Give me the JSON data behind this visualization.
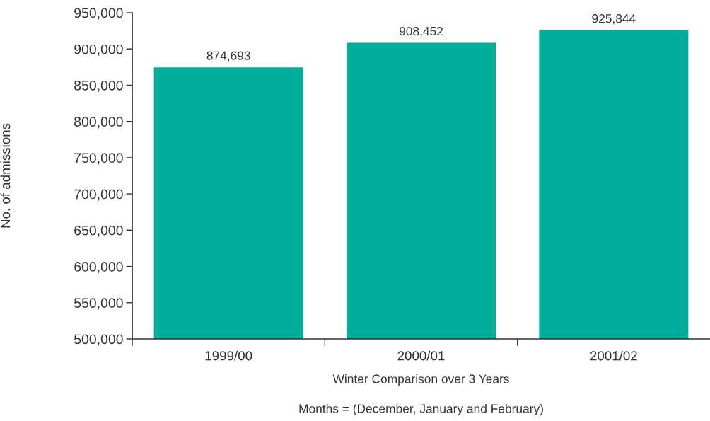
{
  "chart_data": {
    "type": "bar",
    "categories": [
      "1999/00",
      "2000/01",
      "2001/02"
    ],
    "values": [
      874693,
      908452,
      925844
    ],
    "value_labels": [
      "874,693",
      "908,452",
      "925,844"
    ],
    "color": "#00ae9c",
    "ylim": [
      500000,
      950000
    ],
    "yticks": [
      {
        "value": 500000,
        "label": "500,000"
      },
      {
        "value": 550000,
        "label": "550,000"
      },
      {
        "value": 600000,
        "label": "600,000"
      },
      {
        "value": 650000,
        "label": "650,000"
      },
      {
        "value": 700000,
        "label": "700,000"
      },
      {
        "value": 750000,
        "label": "750,000"
      },
      {
        "value": 800000,
        "label": "800,000"
      },
      {
        "value": 850000,
        "label": "850,000"
      },
      {
        "value": 900000,
        "label": "900,000"
      },
      {
        "value": 950000,
        "label": "950,000"
      }
    ],
    "ylabel": "No. of admissions",
    "xlabel": "Winter Comparison over 3 Years",
    "annotations": [
      "Months = (December, January and February)"
    ]
  }
}
